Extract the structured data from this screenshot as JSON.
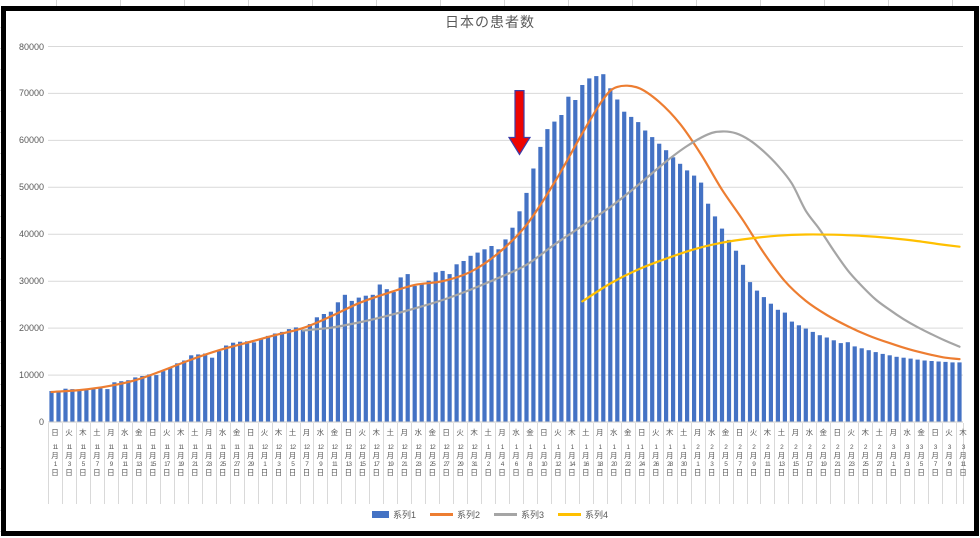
{
  "chart_data": {
    "type": "combo",
    "title": "日本の患者数",
    "n_categories": 131,
    "date_range": "11月1日〜3月11日 (1日ごとの棒、ラベルは2日ごと)",
    "y_axis": {
      "min": 0,
      "max": 80000,
      "step": 10000,
      "tick_labels": [
        "0",
        "10000",
        "20000",
        "30000",
        "40000",
        "50000",
        "60000",
        "70000",
        "80000"
      ]
    },
    "x_labels": [
      {
        "w": "日",
        "t": "11月1日"
      },
      {
        "w": "火",
        "t": "11月3日"
      },
      {
        "w": "木",
        "t": "11月5日"
      },
      {
        "w": "土",
        "t": "11月7日"
      },
      {
        "w": "月",
        "t": "11月9日"
      },
      {
        "w": "水",
        "t": "11月11日"
      },
      {
        "w": "金",
        "t": "11月13日"
      },
      {
        "w": "日",
        "t": "11月15日"
      },
      {
        "w": "火",
        "t": "11月17日"
      },
      {
        "w": "木",
        "t": "11月19日"
      },
      {
        "w": "土",
        "t": "11月21日"
      },
      {
        "w": "月",
        "t": "11月23日"
      },
      {
        "w": "水",
        "t": "11月25日"
      },
      {
        "w": "金",
        "t": "11月27日"
      },
      {
        "w": "日",
        "t": "11月29日"
      },
      {
        "w": "火",
        "t": "12月1日"
      },
      {
        "w": "木",
        "t": "12月3日"
      },
      {
        "w": "土",
        "t": "12月5日"
      },
      {
        "w": "月",
        "t": "12月7日"
      },
      {
        "w": "水",
        "t": "12月9日"
      },
      {
        "w": "金",
        "t": "12月11日"
      },
      {
        "w": "日",
        "t": "12月13日"
      },
      {
        "w": "火",
        "t": "12月15日"
      },
      {
        "w": "木",
        "t": "12月17日"
      },
      {
        "w": "土",
        "t": "12月19日"
      },
      {
        "w": "月",
        "t": "12月21日"
      },
      {
        "w": "水",
        "t": "12月23日"
      },
      {
        "w": "金",
        "t": "12月25日"
      },
      {
        "w": "日",
        "t": "12月27日"
      },
      {
        "w": "火",
        "t": "12月29日"
      },
      {
        "w": "木",
        "t": "12月31日"
      },
      {
        "w": "土",
        "t": "1月2日"
      },
      {
        "w": "月",
        "t": "1月4日"
      },
      {
        "w": "水",
        "t": "1月6日"
      },
      {
        "w": "金",
        "t": "1月8日"
      },
      {
        "w": "日",
        "t": "1月10日"
      },
      {
        "w": "火",
        "t": "1月12日"
      },
      {
        "w": "木",
        "t": "1月14日"
      },
      {
        "w": "土",
        "t": "1月16日"
      },
      {
        "w": "月",
        "t": "1月18日"
      },
      {
        "w": "水",
        "t": "1月20日"
      },
      {
        "w": "金",
        "t": "1月22日"
      },
      {
        "w": "日",
        "t": "1月24日"
      },
      {
        "w": "火",
        "t": "1月26日"
      },
      {
        "w": "木",
        "t": "1月28日"
      },
      {
        "w": "土",
        "t": "1月30日"
      },
      {
        "w": "月",
        "t": "2月1日"
      },
      {
        "w": "水",
        "t": "2月3日"
      },
      {
        "w": "金",
        "t": "2月5日"
      },
      {
        "w": "日",
        "t": "2月7日"
      },
      {
        "w": "火",
        "t": "2月9日"
      },
      {
        "w": "木",
        "t": "2月11日"
      },
      {
        "w": "土",
        "t": "2月13日"
      },
      {
        "w": "月",
        "t": "2月15日"
      },
      {
        "w": "水",
        "t": "2月17日"
      },
      {
        "w": "金",
        "t": "2月19日"
      },
      {
        "w": "日",
        "t": "2月21日"
      },
      {
        "w": "火",
        "t": "2月23日"
      },
      {
        "w": "木",
        "t": "2月25日"
      },
      {
        "w": "土",
        "t": "2月27日"
      },
      {
        "w": "月",
        "t": "3月1日"
      },
      {
        "w": "水",
        "t": "3月3日"
      },
      {
        "w": "金",
        "t": "3月5日"
      },
      {
        "w": "日",
        "t": "3月7日"
      },
      {
        "w": "火",
        "t": "3月9日"
      },
      {
        "w": "木",
        "t": "3月11日"
      }
    ],
    "series": [
      {
        "name": "系列1",
        "type": "bar",
        "color": "#4472C4",
        "values": [
          6600,
          6400,
          7100,
          7000,
          6950,
          7100,
          7000,
          7200,
          7000,
          8450,
          8700,
          8900,
          9500,
          9800,
          10150,
          10000,
          10850,
          11600,
          12500,
          13100,
          14200,
          14400,
          14600,
          13700,
          15100,
          16300,
          16900,
          17100,
          17200,
          16950,
          17600,
          18350,
          18850,
          19200,
          19800,
          20150,
          19650,
          20850,
          22300,
          23000,
          23500,
          25500,
          27100,
          25800,
          26500,
          26900,
          27100,
          29300,
          28300,
          27700,
          30800,
          31500,
          29000,
          29400,
          30100,
          31900,
          32200,
          31500,
          33600,
          34300,
          35400,
          36100,
          36800,
          37500,
          36800,
          38900,
          41400,
          44900,
          48800,
          54000,
          58600,
          62400,
          64000,
          65400,
          69300,
          68600,
          71800,
          73200,
          73700,
          74100,
          71100,
          68700,
          66100,
          65000,
          63900,
          62100,
          60700,
          59300,
          57900,
          56400,
          55000,
          53600,
          52500,
          51000,
          46500,
          43800,
          41200,
          38800,
          36500,
          33500,
          29800,
          28000,
          26600,
          25200,
          23900,
          23300,
          21400,
          20600,
          19900,
          19200,
          18500,
          18000,
          17400,
          16800,
          17000,
          16100,
          15700,
          15300,
          14900,
          14500,
          14200,
          13900,
          13700,
          13500,
          13300,
          13100,
          13000,
          12900,
          12800,
          12700,
          12700
        ]
      },
      {
        "name": "系列2",
        "type": "line",
        "color": "#ED7D31",
        "points": [
          [
            0,
            6400
          ],
          [
            4,
            6800
          ],
          [
            8,
            7600
          ],
          [
            12,
            8900
          ],
          [
            16,
            11000
          ],
          [
            20,
            13300
          ],
          [
            24,
            15300
          ],
          [
            28,
            16900
          ],
          [
            32,
            18500
          ],
          [
            36,
            20000
          ],
          [
            40,
            22500
          ],
          [
            44,
            25300
          ],
          [
            48,
            27400
          ],
          [
            52,
            29200
          ],
          [
            56,
            30000
          ],
          [
            60,
            32000
          ],
          [
            64,
            36000
          ],
          [
            68,
            42000
          ],
          [
            72,
            51000
          ],
          [
            76,
            61500
          ],
          [
            79,
            68800
          ],
          [
            81,
            71400
          ],
          [
            84,
            71200
          ],
          [
            87,
            68200
          ],
          [
            90,
            63500
          ],
          [
            93,
            57000
          ],
          [
            96,
            49500
          ],
          [
            99,
            43000
          ],
          [
            102,
            36000
          ],
          [
            105,
            30000
          ],
          [
            108,
            25800
          ],
          [
            111,
            22800
          ],
          [
            114,
            20400
          ],
          [
            117,
            18400
          ],
          [
            120,
            16800
          ],
          [
            123,
            15400
          ],
          [
            126,
            14300
          ],
          [
            128,
            13700
          ],
          [
            130,
            13400
          ]
        ]
      },
      {
        "name": "系列3",
        "type": "line",
        "color": "#A5A5A5",
        "points": [
          [
            36,
            19500
          ],
          [
            40,
            20100
          ],
          [
            44,
            21200
          ],
          [
            48,
            22600
          ],
          [
            52,
            24200
          ],
          [
            56,
            26000
          ],
          [
            60,
            28200
          ],
          [
            64,
            30700
          ],
          [
            68,
            33500
          ],
          [
            72,
            37800
          ],
          [
            76,
            41800
          ],
          [
            80,
            45800
          ],
          [
            84,
            50500
          ],
          [
            88,
            55500
          ],
          [
            91,
            58800
          ],
          [
            94,
            61300
          ],
          [
            96,
            61900
          ],
          [
            98,
            61500
          ],
          [
            100,
            60000
          ],
          [
            102,
            57600
          ],
          [
            104,
            54600
          ],
          [
            106,
            50800
          ],
          [
            108,
            45000
          ],
          [
            110,
            41000
          ],
          [
            112,
            36500
          ],
          [
            114,
            32300
          ],
          [
            116,
            29000
          ],
          [
            118,
            26100
          ],
          [
            120,
            23900
          ],
          [
            122,
            21900
          ],
          [
            124,
            20200
          ],
          [
            126,
            18700
          ],
          [
            128,
            17300
          ],
          [
            130,
            16050
          ]
        ]
      },
      {
        "name": "系列4",
        "type": "line",
        "color": "#FFC000",
        "points": [
          [
            76,
            25700
          ],
          [
            80,
            29500
          ],
          [
            84,
            32500
          ],
          [
            88,
            34800
          ],
          [
            92,
            36800
          ],
          [
            96,
            38200
          ],
          [
            100,
            39100
          ],
          [
            104,
            39700
          ],
          [
            108,
            39950
          ],
          [
            112,
            39900
          ],
          [
            116,
            39650
          ],
          [
            120,
            39200
          ],
          [
            124,
            38550
          ],
          [
            127,
            37900
          ],
          [
            130,
            37350
          ]
        ]
      }
    ],
    "annotation": {
      "shape": "down-arrow",
      "fill": "#EE0400",
      "stroke": "#3D3DA8",
      "points_at_category": 67,
      "value_top": 70600,
      "value_tip": 57000
    },
    "grid": {
      "color": "#D9D9D9",
      "on": true
    },
    "legend_position": "bottom"
  },
  "legend": {
    "items": [
      {
        "label": "系列1",
        "marker": "bar",
        "color": "#4472C4"
      },
      {
        "label": "系列2",
        "marker": "line",
        "color": "#ED7D31"
      },
      {
        "label": "系列3",
        "marker": "line",
        "color": "#A5A5A5"
      },
      {
        "label": "系列4",
        "marker": "line",
        "color": "#FFC000"
      }
    ]
  },
  "frame": {
    "border_color": "#000000",
    "text_color": "#595959"
  }
}
